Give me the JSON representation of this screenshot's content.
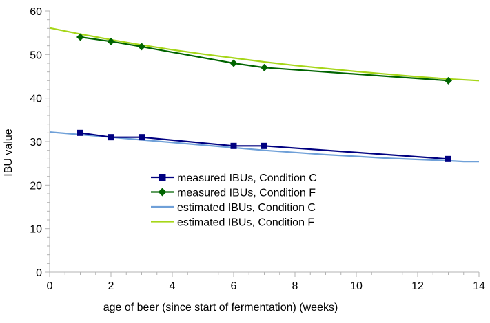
{
  "chart_data": {
    "type": "line",
    "title": "",
    "xlabel": "age of beer (since start of fermentation) (weeks)",
    "ylabel": "IBU value",
    "xlim": [
      0,
      14
    ],
    "ylim": [
      0,
      60
    ],
    "xticks": [
      0,
      2,
      4,
      6,
      8,
      10,
      12,
      14
    ],
    "yticks": [
      0,
      10,
      20,
      30,
      40,
      50,
      60
    ],
    "grid": false,
    "legend_position": "center-left",
    "series": [
      {
        "name": "measured IBUs, Condition C",
        "style": "line-markers",
        "marker": "square",
        "color": "#000080",
        "x": [
          1,
          2,
          3,
          6,
          7,
          13
        ],
        "y": [
          32,
          31,
          31,
          29,
          29,
          26
        ]
      },
      {
        "name": "measured IBUs, Condition F",
        "style": "line-markers",
        "marker": "diamond",
        "color": "#006400",
        "x": [
          1,
          2,
          3,
          6,
          7,
          13
        ],
        "y": [
          54,
          53,
          51.8,
          48,
          47,
          44
        ]
      },
      {
        "name": "estimated IBUs, Condition C",
        "style": "line",
        "color": "#6fa0d8",
        "x": [
          0,
          1,
          2,
          3,
          4,
          5,
          6,
          7,
          8,
          9,
          10,
          11,
          12,
          13,
          13.5,
          14
        ],
        "y": [
          32.2,
          31.6,
          31.0,
          30.4,
          29.8,
          29.2,
          28.6,
          28.0,
          27.5,
          27.0,
          26.6,
          26.2,
          25.9,
          25.6,
          25.4,
          25.4
        ]
      },
      {
        "name": "estimated IBUs, Condition F",
        "style": "line",
        "color": "#a6d619",
        "x": [
          0,
          1,
          2,
          3,
          4,
          5,
          6,
          7,
          8,
          9,
          10,
          11,
          12,
          13,
          14
        ],
        "y": [
          56.1,
          54.7,
          53.4,
          52.2,
          51.1,
          50.1,
          49.2,
          48.3,
          47.5,
          46.8,
          46.1,
          45.5,
          44.9,
          44.4,
          44.0
        ]
      }
    ]
  }
}
